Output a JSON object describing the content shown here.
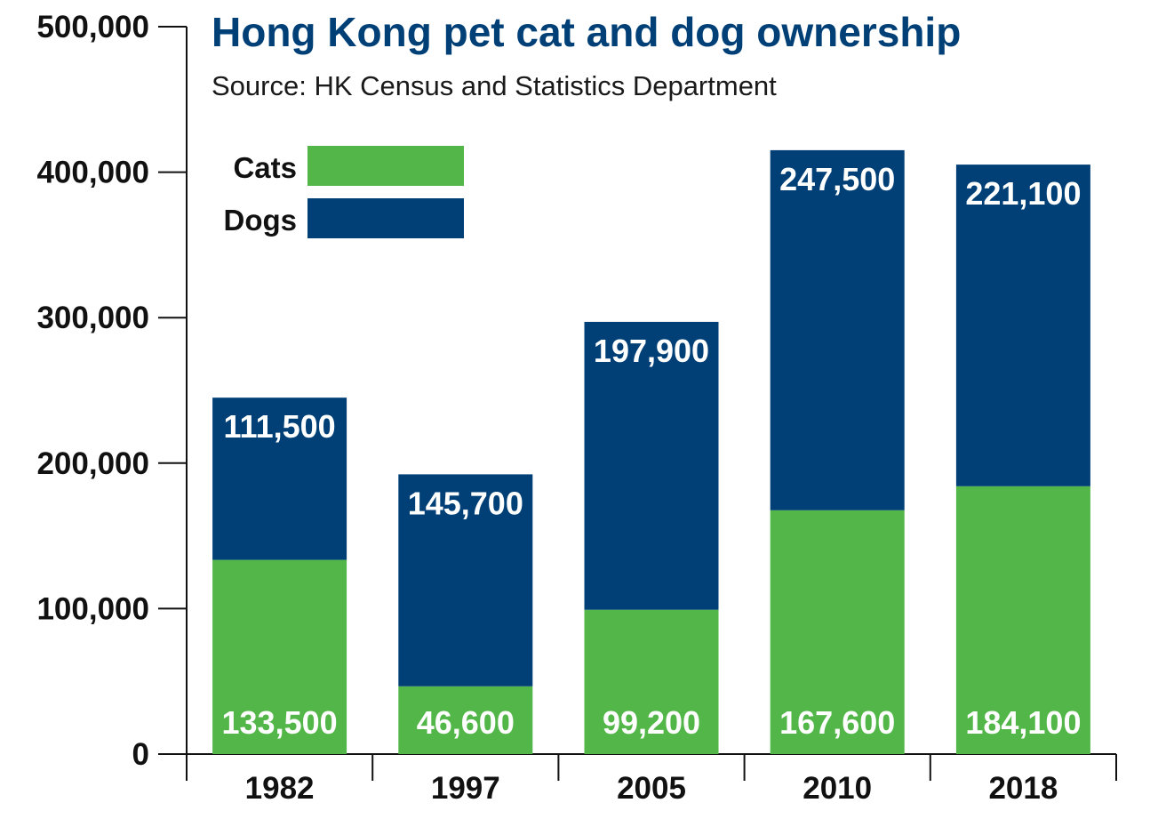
{
  "chart_data": {
    "type": "bar",
    "stacked": true,
    "title": "Hong Kong pet cat and dog ownership",
    "subtitle": "Source: HK Census and Statistics Department",
    "categories": [
      "1982",
      "1997",
      "2005",
      "2010",
      "2018"
    ],
    "series": [
      {
        "name": "Cats",
        "color": "#52b748",
        "values": [
          133500,
          46600,
          99200,
          167600,
          184100
        ],
        "labels": [
          "133,500",
          "46,600",
          "99,200",
          "167,600",
          "184,100"
        ]
      },
      {
        "name": "Dogs",
        "color": "#004077",
        "values": [
          111500,
          145700,
          197900,
          247500,
          221100
        ],
        "labels": [
          "111,500",
          "145,700",
          "197,900",
          "247,500",
          "221,100"
        ]
      }
    ],
    "ylim": [
      0,
      500000
    ],
    "yticks": [
      0,
      100000,
      200000,
      300000,
      400000,
      500000
    ],
    "ytick_labels": [
      "0",
      "100,000",
      "200,000",
      "300,000",
      "400,000",
      "500,000"
    ],
    "grid": false,
    "legend_position": "top-left"
  }
}
